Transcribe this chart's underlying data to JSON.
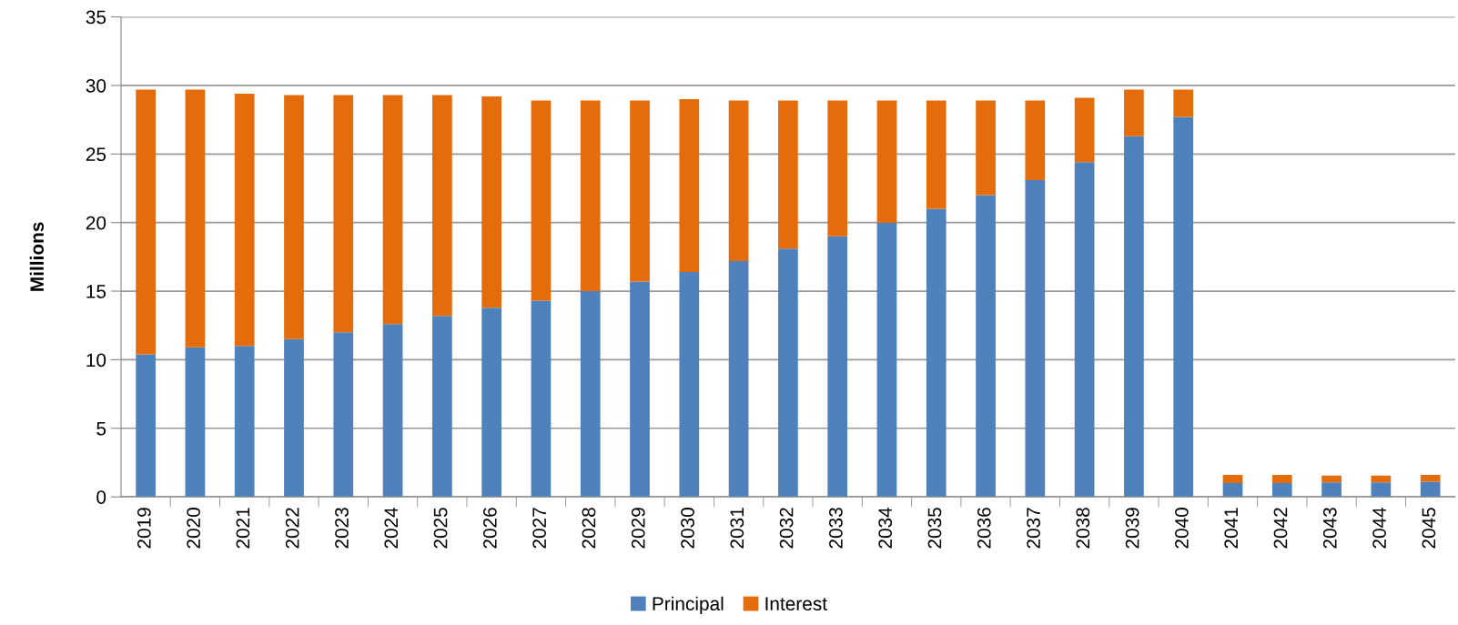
{
  "chart_data": {
    "type": "bar",
    "stacked": true,
    "ylabel": "Millions",
    "categories": [
      "2019",
      "2020",
      "2021",
      "2022",
      "2023",
      "2024",
      "2025",
      "2026",
      "2027",
      "2028",
      "2029",
      "2030",
      "2031",
      "2032",
      "2033",
      "2034",
      "2035",
      "2036",
      "2037",
      "2038",
      "2039",
      "2040",
      "2041",
      "2042",
      "2043",
      "2044",
      "2045"
    ],
    "series": [
      {
        "name": "Principal",
        "color": "#4f81bd",
        "values": [
          10.4,
          10.9,
          11.0,
          11.5,
          12.0,
          12.6,
          13.2,
          13.8,
          14.3,
          15.0,
          15.7,
          16.4,
          17.2,
          18.1,
          19.0,
          20.0,
          21.0,
          22.0,
          23.1,
          24.4,
          26.3,
          27.7,
          1.0,
          1.0,
          1.05,
          1.05,
          1.1
        ]
      },
      {
        "name": "Interest",
        "color": "#e46c0a",
        "values": [
          19.3,
          18.8,
          18.4,
          17.8,
          17.3,
          16.7,
          16.1,
          15.4,
          14.6,
          13.9,
          13.2,
          12.6,
          11.7,
          10.8,
          9.9,
          8.9,
          7.9,
          6.9,
          5.8,
          4.7,
          3.4,
          2.0,
          0.6,
          0.6,
          0.5,
          0.5,
          0.5
        ]
      }
    ],
    "ylim": [
      0,
      35
    ],
    "yticks": [
      0,
      5,
      10,
      15,
      20,
      25,
      30,
      35
    ],
    "grid": "y",
    "legend": "bottom"
  }
}
